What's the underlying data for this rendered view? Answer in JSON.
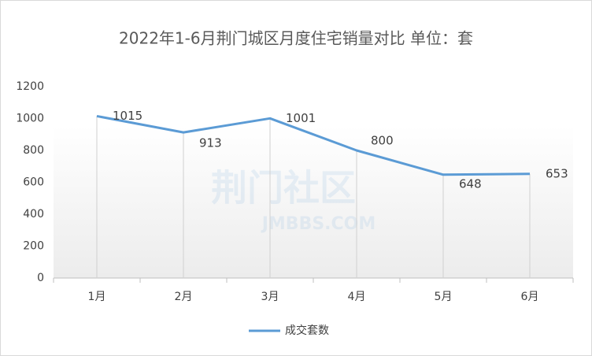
{
  "chart_data": {
    "type": "line",
    "title": "2022年1-6月荆门城区月度住宅销量对比 单位：套",
    "categories": [
      "1月",
      "2月",
      "3月",
      "4月",
      "5月",
      "6月"
    ],
    "series": [
      {
        "name": "成交套数",
        "color": "#5b9bd5",
        "values": [
          1015,
          913,
          1001,
          800,
          648,
          653
        ]
      }
    ],
    "ylim": [
      0,
      1200
    ],
    "yticks": [
      0,
      200,
      400,
      600,
      800,
      1000,
      1200
    ],
    "grid": false,
    "legend": "bottom",
    "watermark": [
      "荆门社区",
      "JMBBS.COM"
    ]
  }
}
